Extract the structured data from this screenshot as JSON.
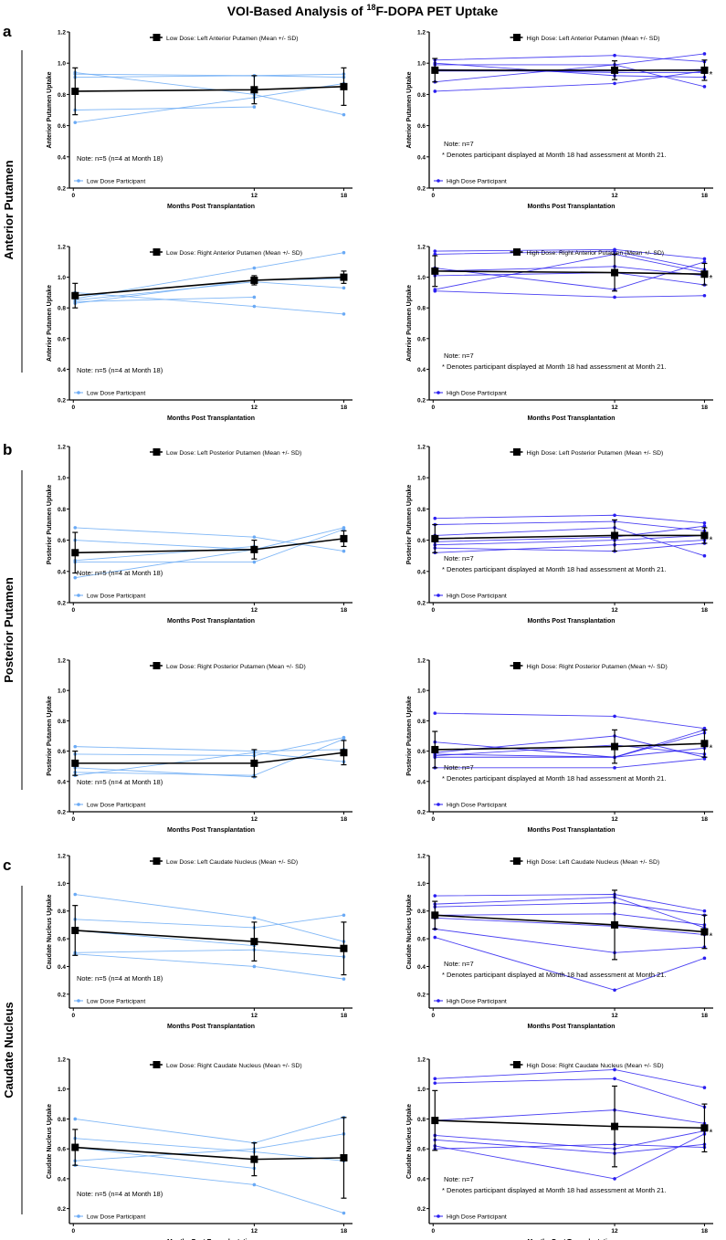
{
  "figure_title_pre": "VOI-Based Analysis of ",
  "figure_title_sup": "18",
  "figure_title_post": "F-DOPA PET Uptake",
  "sections": [
    {
      "letter": "a",
      "label": "Anterior Putamen"
    },
    {
      "letter": "b",
      "label": "Posterior Putamen"
    },
    {
      "letter": "c",
      "label": "Caudate Nucleus"
    }
  ],
  "colors": {
    "low": "#6aaaf5",
    "high": "#2a1ef0",
    "mean": "#000000"
  },
  "chart_data": [
    {
      "type": "line",
      "title": "Low Dose: Left Anterior Putamen (Mean +/- SD)",
      "xlabel": "Months Post Transplantation",
      "ylabel": "Anterior Putamen Uptake",
      "x": [
        0,
        12,
        18
      ],
      "ylim": [
        0.2,
        1.2
      ],
      "yticks": [
        "0.2",
        "0.4",
        "0.6",
        "0.8",
        "1.0",
        "1.2"
      ],
      "xticks": [
        "0",
        "12",
        "18"
      ],
      "group": "low",
      "legend": "Low Dose Participant",
      "notes": [
        "Note: n=5 (n=4 at Month 18)"
      ],
      "star": false,
      "mean": [
        0.82,
        0.83,
        0.85
      ],
      "sd": [
        0.15,
        0.09,
        0.12
      ],
      "participants": [
        [
          0.93,
          0.92,
          0.93
        ],
        [
          0.91,
          0.92,
          0.91
        ],
        [
          0.94,
          0.8,
          0.67
        ],
        [
          0.7,
          0.72,
          null
        ],
        [
          0.62,
          0.78,
          0.87
        ]
      ]
    },
    {
      "type": "line",
      "title": "High Dose: Left Anterior Putamen (Mean +/- SD)",
      "xlabel": "Months Post Transplantation",
      "ylabel": "Anterior Putamen Uptake",
      "x": [
        0,
        12,
        18
      ],
      "ylim": [
        0.2,
        1.2
      ],
      "yticks": [
        "0.2",
        "0.4",
        "0.6",
        "0.8",
        "1.0",
        "1.2"
      ],
      "xticks": [
        "0",
        "12",
        "18"
      ],
      "group": "high",
      "legend": "High Dose Participant",
      "notes": [
        "Note: n=7",
        "* Denotes participant displayed at Month 18 had assessment at Month 21."
      ],
      "star": true,
      "mean": [
        0.955,
        0.955,
        0.955
      ],
      "sd": [
        0.075,
        0.06,
        0.065
      ],
      "participants": [
        [
          1.02,
          1.05,
          1.01
        ],
        [
          1.0,
          0.92,
          0.91
        ],
        [
          0.99,
          0.99,
          0.85
        ],
        [
          0.96,
          0.94,
          0.94
        ],
        [
          0.95,
          0.95,
          0.96
        ],
        [
          0.88,
          0.99,
          1.06
        ],
        [
          0.82,
          0.87,
          0.95
        ]
      ]
    },
    {
      "type": "line",
      "title": "Low Dose: Right Anterior Putamen (Mean +/- SD)",
      "xlabel": "Months Post Transplantation",
      "ylabel": "Anterior Putamen Uptake",
      "x": [
        0,
        12,
        18
      ],
      "ylim": [
        0.2,
        1.2
      ],
      "yticks": [
        "0.2",
        "0.4",
        "0.6",
        "0.8",
        "1.0",
        "1.2"
      ],
      "xticks": [
        "0",
        "12",
        "18"
      ],
      "group": "low",
      "legend": "Low Dose Participant",
      "notes": [
        "Note: n=5 (n=4 at Month 18)"
      ],
      "star": false,
      "mean": [
        0.88,
        0.98,
        1.0
      ],
      "sd": [
        0.08,
        0.03,
        0.04
      ],
      "participants": [
        [
          0.86,
          1.06,
          1.16
        ],
        [
          0.85,
          0.97,
          0.93
        ],
        [
          0.84,
          0.87,
          null
        ],
        [
          0.9,
          0.81,
          0.76
        ],
        [
          0.83,
          0.98,
          0.99
        ]
      ]
    },
    {
      "type": "line",
      "title": "High Dose: Right Anterior Putamen (Mean +/- SD)",
      "xlabel": "Months Post Transplantation",
      "ylabel": "Anterior Putamen Uptake",
      "x": [
        0,
        12,
        18
      ],
      "ylim": [
        0.2,
        1.2
      ],
      "yticks": [
        "0.2",
        "0.4",
        "0.6",
        "0.8",
        "1.0",
        "1.2"
      ],
      "xticks": [
        "0",
        "12",
        "18"
      ],
      "group": "high",
      "legend": "High Dose Participant",
      "notes": [
        "Note: n=7",
        "* Denotes participant displayed at Month 18 had assessment at Month 21."
      ],
      "star": true,
      "mean": [
        1.04,
        1.03,
        1.02
      ],
      "sd": [
        0.1,
        0.12,
        0.07
      ],
      "participants": [
        [
          1.17,
          1.18,
          1.12
        ],
        [
          1.15,
          1.17,
          1.05
        ],
        [
          1.06,
          0.92,
          1.1
        ],
        [
          1.04,
          1.07,
          1.01
        ],
        [
          1.01,
          1.03,
          0.95
        ],
        [
          0.92,
          1.15,
          1.03
        ],
        [
          0.91,
          0.87,
          0.88
        ]
      ]
    },
    {
      "type": "line",
      "title": "Low Dose: Left Posterior Putamen (Mean +/- SD)",
      "xlabel": "Months Post Transplantation",
      "ylabel": "Posterior Putamen Uptake",
      "x": [
        0,
        12,
        18
      ],
      "ylim": [
        0.2,
        1.2
      ],
      "yticks": [
        "0.2",
        "0.4",
        "0.6",
        "0.8",
        "1.0",
        "1.2"
      ],
      "xticks": [
        "0",
        "12",
        "18"
      ],
      "group": "low",
      "legend": "Low Dose Participant",
      "notes": [
        "Note: n=5 (n=4 at Month 18)"
      ],
      "star": false,
      "mean": [
        0.52,
        0.54,
        0.61
      ],
      "sd": [
        0.13,
        0.06,
        0.05
      ],
      "participants": [
        [
          0.68,
          0.62,
          0.53
        ],
        [
          0.6,
          0.54,
          0.68
        ],
        [
          0.47,
          0.56,
          null
        ],
        [
          0.46,
          0.46,
          0.67
        ],
        [
          0.36,
          0.54,
          0.61
        ]
      ]
    },
    {
      "type": "line",
      "title": "High Dose: Left Posterior Putamen (Mean +/- SD)",
      "xlabel": "Months Post Transplantation",
      "ylabel": "Posterior Putamen Uptake",
      "x": [
        0,
        12,
        18
      ],
      "ylim": [
        0.2,
        1.2
      ],
      "yticks": [
        "0.2",
        "0.4",
        "0.6",
        "0.8",
        "1.0",
        "1.2"
      ],
      "xticks": [
        "0",
        "12",
        "18"
      ],
      "group": "high",
      "legend": "High Dose Participant",
      "notes": [
        "Note: n=7",
        "* Denotes participant displayed at Month 18 had assessment at Month 21."
      ],
      "star": true,
      "mean": [
        0.61,
        0.63,
        0.63
      ],
      "sd": [
        0.09,
        0.1,
        0.05
      ],
      "participants": [
        [
          0.74,
          0.76,
          0.71
        ],
        [
          0.7,
          0.72,
          0.66
        ],
        [
          0.63,
          0.68,
          0.5
        ],
        [
          0.59,
          0.62,
          0.69
        ],
        [
          0.57,
          0.6,
          0.63
        ],
        [
          0.55,
          0.53,
          0.58
        ],
        [
          0.52,
          0.57,
          0.6
        ]
      ]
    },
    {
      "type": "line",
      "title": "Low Dose: Right Posterior Putamen (Mean +/- SD)",
      "xlabel": "Months Post Transplantation",
      "ylabel": "Posterior Putamen Uptake",
      "x": [
        0,
        12,
        18
      ],
      "ylim": [
        0.2,
        1.2
      ],
      "yticks": [
        "0.2",
        "0.4",
        "0.6",
        "0.8",
        "1.0",
        "1.2"
      ],
      "xticks": [
        "0",
        "12",
        "18"
      ],
      "group": "low",
      "legend": "Low Dose Participant",
      "notes": [
        "Note: n=5 (n=4 at Month 18)"
      ],
      "star": false,
      "mean": [
        0.52,
        0.52,
        0.59
      ],
      "sd": [
        0.08,
        0.09,
        0.08
      ],
      "participants": [
        [
          0.63,
          0.6,
          0.61
        ],
        [
          0.58,
          0.57,
          0.69
        ],
        [
          0.49,
          0.43,
          null
        ],
        [
          0.46,
          0.44,
          0.68
        ],
        [
          0.44,
          0.59,
          0.53
        ]
      ]
    },
    {
      "type": "line",
      "title": "High Dose: Right Posterior Putamen (Mean +/- SD)",
      "xlabel": "Months Post Transplantation",
      "ylabel": "Posterior Putamen Uptake",
      "x": [
        0,
        12,
        18
      ],
      "ylim": [
        0.2,
        1.2
      ],
      "yticks": [
        "0.2",
        "0.4",
        "0.6",
        "0.8",
        "1.0",
        "1.2"
      ],
      "xticks": [
        "0",
        "12",
        "18"
      ],
      "group": "high",
      "legend": "High Dose Participant",
      "notes": [
        "Note: n=7",
        "* Denotes participant displayed at Month 18 had assessment at Month 21."
      ],
      "star": true,
      "mean": [
        0.61,
        0.63,
        0.65
      ],
      "sd": [
        0.12,
        0.11,
        0.09
      ],
      "participants": [
        [
          0.85,
          0.83,
          0.75
        ],
        [
          0.66,
          0.56,
          0.74
        ],
        [
          0.59,
          0.7,
          0.56
        ],
        [
          0.58,
          0.56,
          0.72
        ],
        [
          0.57,
          0.64,
          0.58
        ],
        [
          0.56,
          0.56,
          0.62
        ],
        [
          0.49,
          0.49,
          0.55
        ]
      ]
    },
    {
      "type": "line",
      "title": "Low Dose: Left Caudate Nucleus (Mean +/- SD)",
      "xlabel": "Months Post Transplantation",
      "ylabel": "Caudate Nucleus Uptake",
      "x": [
        0,
        12,
        18
      ],
      "ylim": [
        0.1,
        1.2
      ],
      "yticks": [
        "0.2",
        "0.4",
        "0.6",
        "0.8",
        "1.0",
        "1.2"
      ],
      "xticks": [
        "0",
        "12",
        "18"
      ],
      "group": "low",
      "legend": "Low Dose Participant",
      "notes": [
        "Note: n=5 (n=4 at Month 18)"
      ],
      "star": false,
      "mean": [
        0.66,
        0.58,
        0.53
      ],
      "sd": [
        0.18,
        0.14,
        0.19
      ],
      "participants": [
        [
          0.92,
          0.75,
          0.58
        ],
        [
          0.74,
          0.68,
          0.77
        ],
        [
          0.66,
          0.55,
          null
        ],
        [
          0.5,
          0.52,
          0.47
        ],
        [
          0.49,
          0.4,
          0.31
        ]
      ]
    },
    {
      "type": "line",
      "title": "High Dose: Left Caudate Nucleus (Mean +/- SD)",
      "xlabel": "Months Post Transplantation",
      "ylabel": "Caudate Nucleus Uptake",
      "x": [
        0,
        12,
        18
      ],
      "ylim": [
        0.1,
        1.2
      ],
      "yticks": [
        "0.2",
        "0.4",
        "0.6",
        "0.8",
        "1.0",
        "1.2"
      ],
      "xticks": [
        "0",
        "12",
        "18"
      ],
      "group": "high",
      "legend": "High Dose Participant",
      "notes": [
        "Note: n=7",
        "* Denotes participant displayed at Month 18 had assessment at Month 21."
      ],
      "star": true,
      "mean": [
        0.77,
        0.7,
        0.65
      ],
      "sd": [
        0.1,
        0.25,
        0.12
      ],
      "participants": [
        [
          0.91,
          0.92,
          0.8
        ],
        [
          0.85,
          0.9,
          0.68
        ],
        [
          0.83,
          0.86,
          0.77
        ],
        [
          0.77,
          0.78,
          0.7
        ],
        [
          0.75,
          0.69,
          0.63
        ],
        [
          0.67,
          0.5,
          0.54
        ],
        [
          0.61,
          0.23,
          0.46
        ]
      ]
    },
    {
      "type": "line",
      "title": "Low Dose: Right Caudate Nucleus (Mean +/- SD)",
      "xlabel": "Months Post Transplantation",
      "ylabel": "Caudate Nucleus Uptake",
      "x": [
        0,
        12,
        18
      ],
      "ylim": [
        0.1,
        1.2
      ],
      "yticks": [
        "0.2",
        "0.4",
        "0.6",
        "0.8",
        "1.0",
        "1.2"
      ],
      "xticks": [
        "0",
        "12",
        "18"
      ],
      "group": "low",
      "legend": "Low Dose Participant",
      "notes": [
        "Note: n=5 (n=4 at Month 18)"
      ],
      "star": false,
      "mean": [
        0.61,
        0.53,
        0.54
      ],
      "sd": [
        0.12,
        0.11,
        0.27
      ],
      "participants": [
        [
          0.8,
          0.64,
          0.81
        ],
        [
          0.67,
          0.58,
          0.52
        ],
        [
          0.61,
          0.47,
          null
        ],
        [
          0.52,
          0.6,
          0.7
        ],
        [
          0.49,
          0.36,
          0.17
        ]
      ]
    },
    {
      "type": "line",
      "title": "High Dose: Right Caudate Nucleus (Mean +/- SD)",
      "xlabel": "Months Post Transplantation",
      "ylabel": "Caudate Nucleus Uptake",
      "x": [
        0,
        12,
        18
      ],
      "ylim": [
        0.1,
        1.2
      ],
      "yticks": [
        "0.2",
        "0.4",
        "0.6",
        "0.8",
        "1.0",
        "1.2"
      ],
      "xticks": [
        "0",
        "12",
        "18"
      ],
      "group": "high",
      "legend": "High Dose Participant",
      "notes": [
        "Note: n=7",
        "* Denotes participant displayed at Month 18 had assessment at Month 21."
      ],
      "star": true,
      "mean": [
        0.79,
        0.75,
        0.74
      ],
      "sd": [
        0.2,
        0.27,
        0.16
      ],
      "participants": [
        [
          1.07,
          1.13,
          1.01
        ],
        [
          1.04,
          1.07,
          0.88
        ],
        [
          0.79,
          0.86,
          0.77
        ],
        [
          0.69,
          0.6,
          0.72
        ],
        [
          0.66,
          0.57,
          0.63
        ],
        [
          0.62,
          0.4,
          0.7
        ],
        [
          0.6,
          0.63,
          0.61
        ]
      ]
    }
  ]
}
